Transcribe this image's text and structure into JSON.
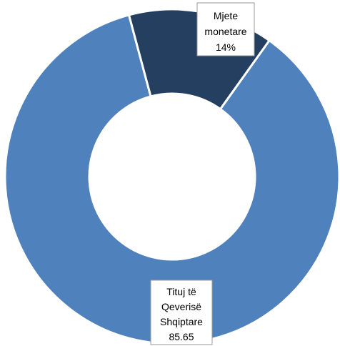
{
  "chart_data": {
    "type": "pie",
    "donut": true,
    "slices": [
      {
        "name": "Mjete monetare",
        "value": 14,
        "color": "#243f60",
        "label_lines": [
          "Mjete",
          "monetare",
          "14%"
        ]
      },
      {
        "name": "Tituj të Qeverisë Shqiptare",
        "value": 85.65,
        "color": "#4f81bd",
        "label_lines": [
          "Tituj të",
          "Qeverisë",
          "Shqiptare",
          "85.65"
        ]
      }
    ],
    "legend": "none"
  }
}
